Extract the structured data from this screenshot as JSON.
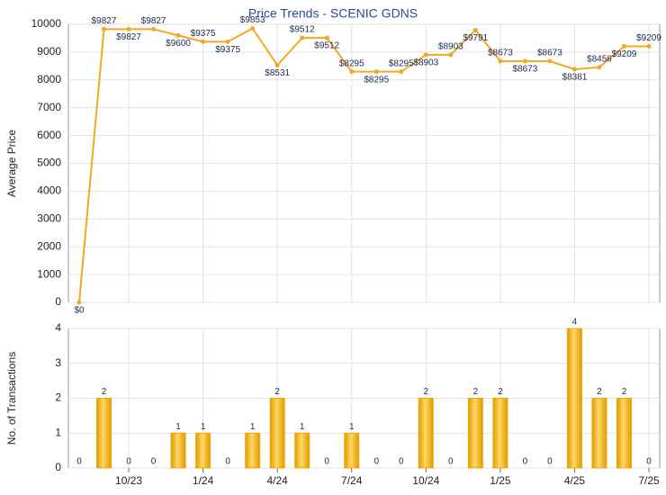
{
  "chart_data": [
    {
      "type": "line",
      "title": "Price Trends - SCENIC GDNS",
      "ylabel": "Average Price",
      "categories": [
        null,
        null,
        "10/23",
        null,
        null,
        "1/24",
        null,
        null,
        "4/24",
        null,
        null,
        "7/24",
        null,
        null,
        "10/24",
        null,
        null,
        "1/25",
        null,
        null,
        "4/25",
        null,
        null,
        "7/25"
      ],
      "values": [
        0,
        9827,
        9827,
        9827,
        9600,
        9375,
        9375,
        9853,
        8531,
        9512,
        9512,
        8295,
        8295,
        8295,
        8903,
        8903,
        9791,
        8673,
        8673,
        8673,
        8381,
        8456,
        9209,
        9209
      ],
      "value_labels": [
        "$0",
        "$9827",
        "$9827",
        "$9827",
        "$9600",
        "$9375",
        "$9375",
        "$9853",
        "$8531",
        "$9512",
        "$9512",
        "$8295",
        "$8295",
        "$8295",
        "$8903",
        "$8903",
        "$9791",
        "$8673",
        "$8673",
        "$8673",
        "$8381",
        "$8456",
        "$9209",
        "$9209"
      ],
      "color": "#f5a623",
      "ylim": [
        0,
        10000
      ],
      "yticks": [
        0,
        1000,
        2000,
        3000,
        4000,
        5000,
        6000,
        7000,
        8000,
        9000,
        10000
      ],
      "grid": true
    },
    {
      "type": "bar",
      "ylabel": "No. of Transactions",
      "categories": [
        null,
        null,
        "10/23",
        null,
        null,
        "1/24",
        null,
        null,
        "4/24",
        null,
        null,
        "7/24",
        null,
        null,
        "10/24",
        null,
        null,
        "1/25",
        null,
        null,
        "4/25",
        null,
        null,
        "7/25"
      ],
      "values": [
        0,
        2,
        0,
        0,
        1,
        1,
        0,
        1,
        2,
        1,
        0,
        1,
        0,
        0,
        2,
        0,
        2,
        2,
        0,
        0,
        4,
        2,
        2,
        0
      ],
      "color": "#f0a800",
      "ylim": [
        0,
        4
      ],
      "yticks": [
        0,
        1,
        2,
        3,
        4
      ],
      "grid": true
    }
  ]
}
